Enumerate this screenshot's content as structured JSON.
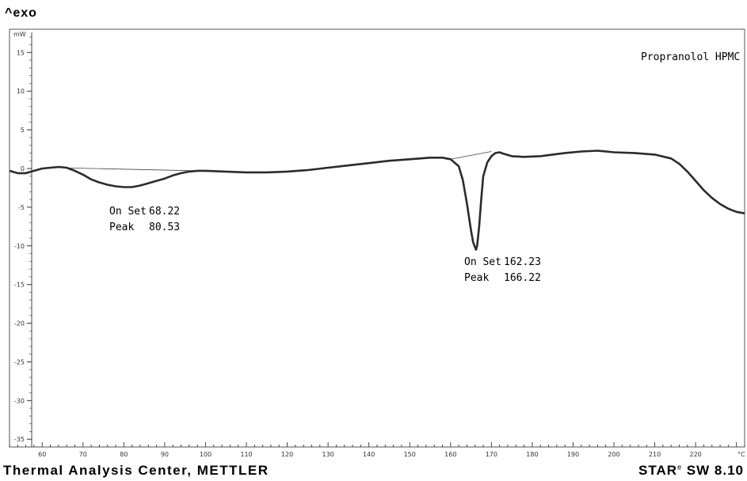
{
  "header": {
    "exo_label": "^exo"
  },
  "footer": {
    "left": "Thermal Analysis Center, METTLER",
    "right_main": "STAR",
    "right_sup": "e",
    "right_version": " SW 8.10"
  },
  "chart_data": {
    "type": "line",
    "xlabel": "°C",
    "ylabel": "mW",
    "xlim": [
      52,
      232
    ],
    "ylim": [
      -36,
      18
    ],
    "x_ticks": [
      60,
      70,
      80,
      90,
      100,
      110,
      120,
      130,
      140,
      150,
      160,
      170,
      180,
      190,
      200,
      210,
      220
    ],
    "y_ticks": [
      15,
      10,
      5,
      0,
      -5,
      -10,
      -15,
      -20,
      -25,
      -30,
      -35
    ],
    "grid": false,
    "series": [
      {
        "name": "Propranolol HPMC",
        "color": "#2b2b2b",
        "x": [
          52,
          54,
          56,
          58,
          60,
          62,
          64,
          66,
          68,
          70,
          72,
          74,
          76,
          78,
          80,
          82,
          84,
          86,
          88,
          90,
          92,
          94,
          96,
          98,
          100,
          105,
          110,
          115,
          120,
          125,
          130,
          135,
          140,
          145,
          150,
          155,
          158,
          160,
          162,
          163,
          164,
          165,
          165.5,
          166,
          166.22,
          166.5,
          167,
          167.5,
          168,
          169,
          170,
          171,
          172,
          173,
          175,
          178,
          182,
          185,
          188,
          192,
          196,
          200,
          205,
          210,
          214,
          216,
          218,
          220,
          222,
          224,
          226,
          228,
          230,
          232
        ],
        "y": [
          -0.3,
          -0.6,
          -0.6,
          -0.3,
          0.0,
          0.1,
          0.2,
          0.1,
          -0.3,
          -0.8,
          -1.4,
          -1.8,
          -2.1,
          -2.3,
          -2.4,
          -2.4,
          -2.2,
          -1.9,
          -1.6,
          -1.3,
          -0.9,
          -0.6,
          -0.4,
          -0.3,
          -0.3,
          -0.4,
          -0.5,
          -0.5,
          -0.4,
          -0.2,
          0.1,
          0.4,
          0.7,
          1.0,
          1.2,
          1.4,
          1.4,
          1.2,
          0.3,
          -1.5,
          -4.5,
          -8.0,
          -9.5,
          -10.2,
          -10.5,
          -10.0,
          -7.5,
          -4.0,
          -1.0,
          0.8,
          1.6,
          2.0,
          2.1,
          1.9,
          1.6,
          1.5,
          1.6,
          1.8,
          2.0,
          2.2,
          2.3,
          2.1,
          2.0,
          1.8,
          1.3,
          0.6,
          -0.4,
          -1.6,
          -2.8,
          -3.8,
          -4.6,
          -5.2,
          -5.6,
          -5.8
        ]
      }
    ],
    "baselines": [
      {
        "x": [
          64,
          98
        ],
        "y": [
          0.1,
          -0.3
        ]
      },
      {
        "x": [
          160,
          170
        ],
        "y": [
          1.2,
          2.2
        ]
      }
    ],
    "annotations": [
      {
        "label": "On Set",
        "value": "68.22"
      },
      {
        "label": "Peak",
        "value": "80.53"
      },
      {
        "label": "On Set",
        "value": "162.23"
      },
      {
        "label": "Peak",
        "value": "166.22"
      }
    ]
  }
}
